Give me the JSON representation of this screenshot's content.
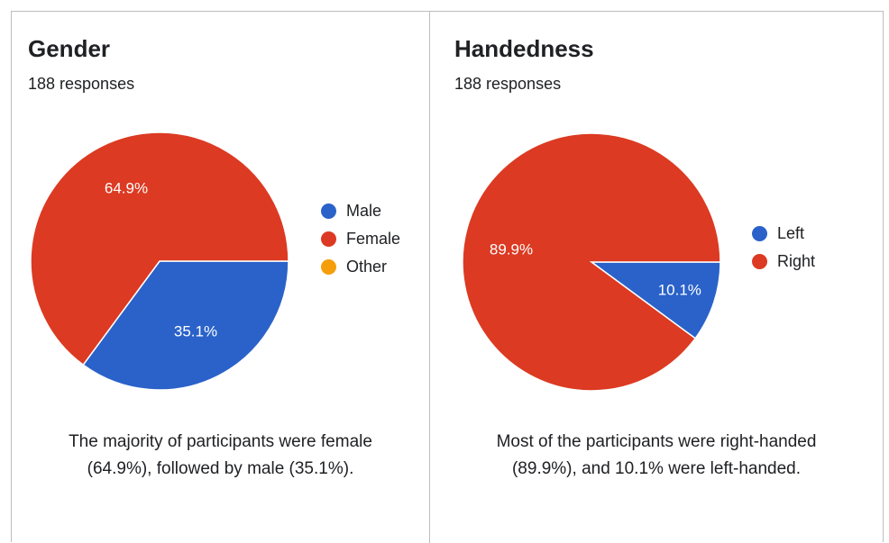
{
  "chart_data": [
    {
      "type": "pie",
      "title": "Gender",
      "subtitle": "188 responses",
      "categories": [
        "Male",
        "Female",
        "Other"
      ],
      "values": [
        35.1,
        64.9,
        0
      ],
      "value_labels": [
        "35.1%",
        "64.9%",
        ""
      ],
      "colors": [
        "#2a62c9",
        "#dc3a22",
        "#f59e0b"
      ],
      "legend_position": "right",
      "caption_lines": [
        "The majority of participants were female",
        "(64.9%), followed by male (35.1%)."
      ]
    },
    {
      "type": "pie",
      "title": "Handedness",
      "subtitle": "188 responses",
      "categories": [
        "Left",
        "Right"
      ],
      "values": [
        10.1,
        89.9
      ],
      "value_labels": [
        "10.1%",
        "89.9%"
      ],
      "colors": [
        "#2a62c9",
        "#dc3a22"
      ],
      "legend_position": "right",
      "caption_lines": [
        "Most of the participants were right-handed",
        "(89.9%), and 10.1% were left-handed."
      ]
    }
  ]
}
